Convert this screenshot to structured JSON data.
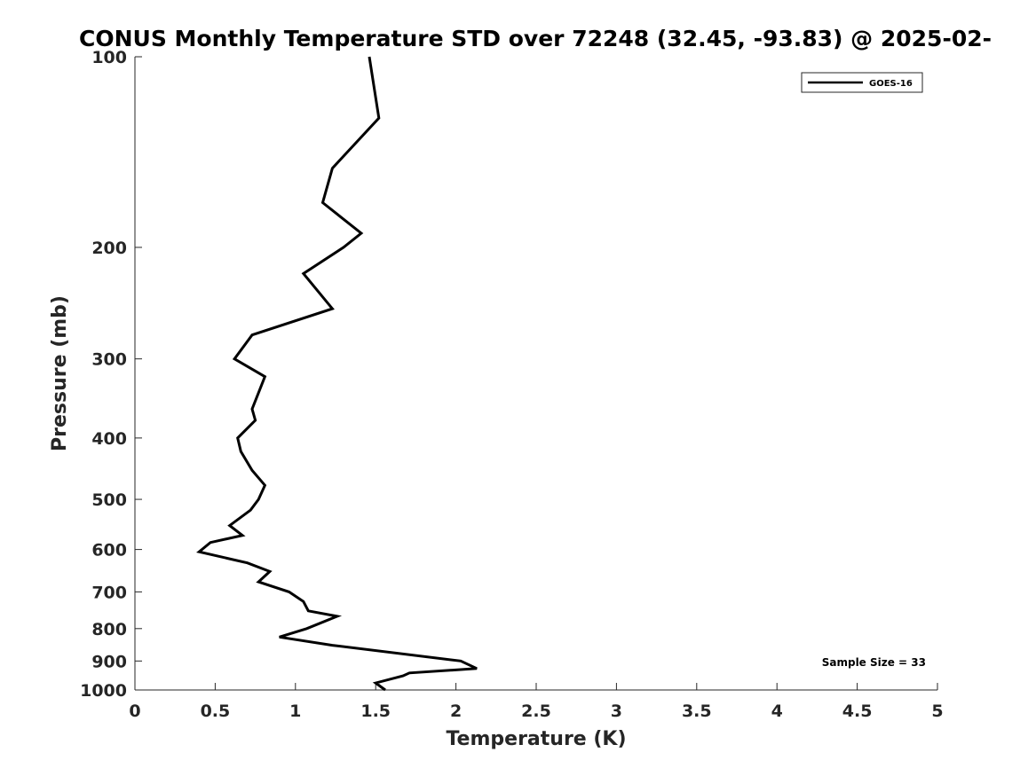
{
  "chart_data": {
    "type": "line",
    "title": "CONUS Monthly Temperature STD over 72248 (32.45, -93.83) @ 2025-02-",
    "xlabel": "Temperature (K)",
    "ylabel": "Pressure (mb)",
    "xlim": [
      0,
      5
    ],
    "ylim": [
      100,
      1000
    ],
    "y_scale": "log",
    "y_reversed": true,
    "x_ticks": [
      "0",
      "0.5",
      "1",
      "1.5",
      "2",
      "2.5",
      "3",
      "3.5",
      "4",
      "4.5",
      "5"
    ],
    "y_ticks": [
      "100",
      "200",
      "300",
      "400",
      "500",
      "600",
      "700",
      "800",
      "900",
      "1000"
    ],
    "grid": false,
    "legend_position": "top-right",
    "series": [
      {
        "name": "GOES-16",
        "color": "#000000",
        "points": [
          {
            "x": 1.46,
            "p": 100
          },
          {
            "x": 1.52,
            "p": 125
          },
          {
            "x": 1.23,
            "p": 150
          },
          {
            "x": 1.17,
            "p": 170
          },
          {
            "x": 1.41,
            "p": 190
          },
          {
            "x": 1.3,
            "p": 200
          },
          {
            "x": 1.05,
            "p": 220
          },
          {
            "x": 1.23,
            "p": 250
          },
          {
            "x": 0.73,
            "p": 275
          },
          {
            "x": 0.62,
            "p": 300
          },
          {
            "x": 0.81,
            "p": 320
          },
          {
            "x": 0.73,
            "p": 360
          },
          {
            "x": 0.75,
            "p": 375
          },
          {
            "x": 0.64,
            "p": 400
          },
          {
            "x": 0.66,
            "p": 420
          },
          {
            "x": 0.73,
            "p": 450
          },
          {
            "x": 0.81,
            "p": 475
          },
          {
            "x": 0.77,
            "p": 500
          },
          {
            "x": 0.72,
            "p": 520
          },
          {
            "x": 0.59,
            "p": 550
          },
          {
            "x": 0.67,
            "p": 570
          },
          {
            "x": 0.47,
            "p": 585
          },
          {
            "x": 0.4,
            "p": 605
          },
          {
            "x": 0.7,
            "p": 630
          },
          {
            "x": 0.84,
            "p": 650
          },
          {
            "x": 0.77,
            "p": 675
          },
          {
            "x": 0.96,
            "p": 700
          },
          {
            "x": 1.05,
            "p": 725
          },
          {
            "x": 1.08,
            "p": 750
          },
          {
            "x": 1.26,
            "p": 765
          },
          {
            "x": 1.07,
            "p": 800
          },
          {
            "x": 0.9,
            "p": 825
          },
          {
            "x": 1.23,
            "p": 850
          },
          {
            "x": 2.03,
            "p": 900
          },
          {
            "x": 2.13,
            "p": 925
          },
          {
            "x": 1.71,
            "p": 940
          },
          {
            "x": 1.67,
            "p": 950
          },
          {
            "x": 1.5,
            "p": 975
          },
          {
            "x": 1.56,
            "p": 1000
          }
        ]
      }
    ],
    "annotations": [
      {
        "text": "Sample Size = 33",
        "position": "bottom-right"
      }
    ]
  }
}
